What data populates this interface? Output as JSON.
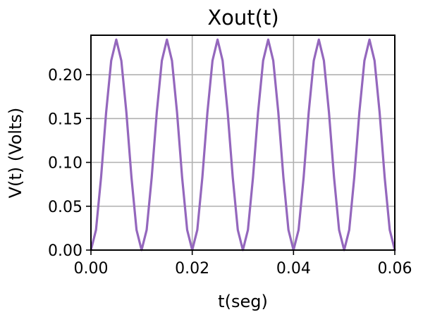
{
  "chart_data": {
    "type": "line",
    "title": "Xout(t)",
    "xlabel": "t(seg)",
    "ylabel": "V(t) (Volts)",
    "xlim": [
      0.0,
      0.06
    ],
    "ylim": [
      0.0,
      0.245
    ],
    "xticks": [
      0.0,
      0.02,
      0.04,
      0.06
    ],
    "xtick_labels": [
      "0.00",
      "0.02",
      "0.04",
      "0.06"
    ],
    "yticks": [
      0.0,
      0.05,
      0.1,
      0.15,
      0.2
    ],
    "ytick_labels": [
      "0.00",
      "0.05",
      "0.10",
      "0.15",
      "0.20"
    ],
    "grid": true,
    "series": [
      {
        "color": "#9467bd",
        "x": [
          0.0,
          0.001,
          0.002,
          0.003,
          0.004,
          0.005,
          0.006,
          0.007,
          0.008,
          0.009,
          0.01,
          0.011,
          0.012,
          0.013,
          0.014,
          0.015,
          0.016,
          0.017,
          0.018,
          0.019,
          0.02,
          0.021,
          0.022,
          0.023,
          0.024,
          0.025,
          0.026,
          0.027,
          0.028,
          0.029,
          0.03,
          0.031,
          0.032,
          0.033,
          0.034,
          0.035,
          0.036,
          0.037,
          0.038,
          0.039,
          0.04,
          0.041,
          0.042,
          0.043,
          0.044,
          0.045,
          0.046,
          0.047,
          0.048,
          0.049,
          0.05,
          0.051,
          0.052,
          0.053,
          0.054,
          0.055,
          0.056,
          0.057,
          0.058,
          0.059,
          0.06
        ],
        "y": [
          0.0,
          0.023,
          0.083,
          0.157,
          0.216,
          0.24,
          0.216,
          0.157,
          0.083,
          0.023,
          0.0,
          0.023,
          0.083,
          0.157,
          0.216,
          0.24,
          0.216,
          0.157,
          0.083,
          0.023,
          0.0,
          0.023,
          0.083,
          0.157,
          0.216,
          0.24,
          0.216,
          0.157,
          0.083,
          0.023,
          0.0,
          0.023,
          0.083,
          0.157,
          0.216,
          0.24,
          0.216,
          0.157,
          0.083,
          0.023,
          0.0,
          0.023,
          0.083,
          0.157,
          0.216,
          0.24,
          0.216,
          0.157,
          0.083,
          0.023,
          0.0,
          0.023,
          0.083,
          0.157,
          0.216,
          0.24,
          0.216,
          0.157,
          0.083,
          0.023,
          0.0
        ]
      }
    ]
  }
}
